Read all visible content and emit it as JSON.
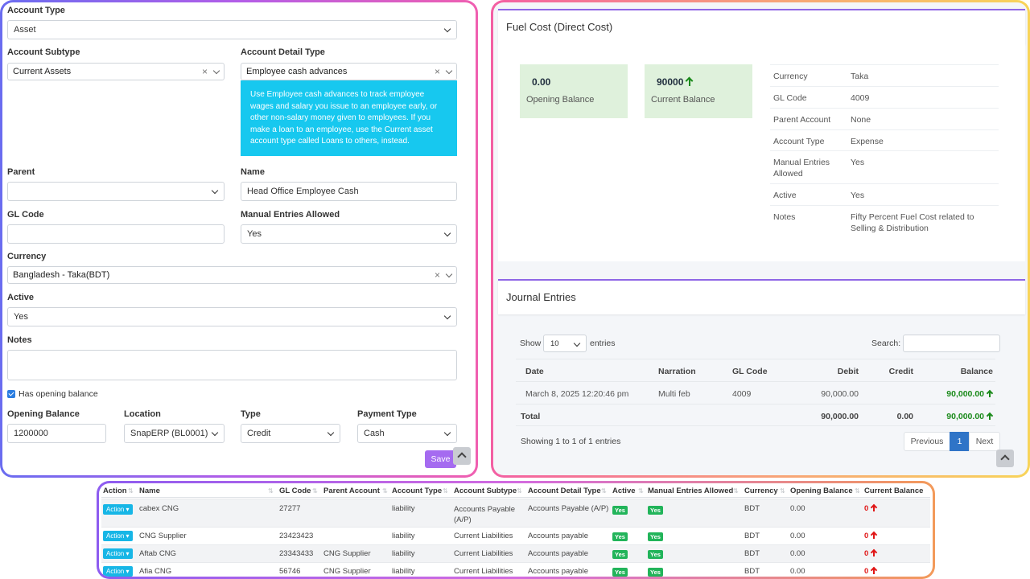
{
  "form": {
    "account_type": {
      "label": "Account Type",
      "value": "Asset"
    },
    "account_subtype": {
      "label": "Account Subtype",
      "value": "Current Assets"
    },
    "account_detail_type": {
      "label": "Account Detail Type",
      "value": "Employee cash advances"
    },
    "detail_hint": "Use Employee cash advances to track employee wages and salary you issue to an employee early, or other non-salary money given to employees. If you make a loan to an employee, use the Current asset account type called Loans to others, instead.",
    "parent": {
      "label": "Parent",
      "value": ""
    },
    "name": {
      "label": "Name",
      "value": "Head Office Employee Cash"
    },
    "gl_code": {
      "label": "GL Code",
      "value": ""
    },
    "manual_entries": {
      "label": "Manual Entries Allowed",
      "value": "Yes"
    },
    "currency": {
      "label": "Currency",
      "value": "Bangladesh - Taka(BDT)"
    },
    "active": {
      "label": "Active",
      "value": "Yes"
    },
    "notes": {
      "label": "Notes",
      "value": ""
    },
    "has_opening_balance": "Has opening balance",
    "opening_balance": {
      "label": "Opening Balance",
      "value": "1200000"
    },
    "location": {
      "label": "Location",
      "value": "SnapERP (BL0001)"
    },
    "type": {
      "label": "Type",
      "value": "Credit"
    },
    "payment_type": {
      "label": "Payment Type",
      "value": "Cash"
    },
    "save_label": "Save"
  },
  "account": {
    "title": "Fuel Cost (Direct Cost)",
    "opening_balance_value": "0.00",
    "opening_balance_caption": "Opening Balance",
    "current_balance_value": "90000",
    "current_balance_caption": "Current Balance",
    "details": [
      {
        "k": "Currency",
        "v": "Taka"
      },
      {
        "k": "GL Code",
        "v": "4009"
      },
      {
        "k": "Parent Account",
        "v": "None"
      },
      {
        "k": "Account Type",
        "v": "Expense"
      },
      {
        "k": "Manual Entries Allowed",
        "v": "Yes"
      },
      {
        "k": "Active",
        "v": "Yes"
      },
      {
        "k": "Notes",
        "v": "Fifty Percent Fuel Cost related to Selling & Distribution"
      }
    ]
  },
  "journal": {
    "title": "Journal Entries",
    "show_label": "Show",
    "entries_label": "entries",
    "page_size": "10",
    "search_label": "Search:",
    "columns": [
      "Date",
      "Narration",
      "GL Code",
      "Debit",
      "Credit",
      "Balance"
    ],
    "rows": [
      {
        "date": "March 8, 2025 12:20:46 pm",
        "narration": "Multi feb",
        "gl": "4009",
        "debit": "90,000.00",
        "credit": "",
        "balance": "90,000.00"
      }
    ],
    "total": {
      "label": "Total",
      "debit": "90,000.00",
      "credit": "0.00",
      "balance": "90,000.00"
    },
    "info": "Showing 1 to 1 of 1 entries",
    "prev": "Previous",
    "page": "1",
    "next": "Next"
  },
  "accounts_table": {
    "columns": [
      "Action",
      "Name",
      "GL Code",
      "Parent Account",
      "Account Type",
      "Account Subtype",
      "Account Detail Type",
      "Active",
      "Manual Entries Allowed",
      "Currency",
      "Opening Balance",
      "Current Balance"
    ],
    "action_label": "Action",
    "yes_label": "Yes",
    "rows": [
      {
        "name": "cabex CNG",
        "gl": "27277",
        "parent": "",
        "type": "liability",
        "subtype": "Accounts Payable (A/P)",
        "detail": "Accounts Payable (A/P)",
        "currency": "BDT",
        "opening": "0.00",
        "current": "0"
      },
      {
        "name": "CNG Supplier",
        "gl": "23423423",
        "parent": "",
        "type": "liability",
        "subtype": "Current Liabilities",
        "detail": "Accounts payable",
        "currency": "BDT",
        "opening": "0.00",
        "current": "0"
      },
      {
        "name": "Aftab CNG",
        "gl": "23343433",
        "parent": "CNG Supplier",
        "type": "liability",
        "subtype": "Current Liabilities",
        "detail": "Accounts payable",
        "currency": "BDT",
        "opening": "0.00",
        "current": "0"
      },
      {
        "name": "Afia CNG",
        "gl": "56746",
        "parent": "CNG Supplier",
        "type": "liability",
        "subtype": "Current Liabilities",
        "detail": "Accounts payable",
        "currency": "BDT",
        "opening": "0.00",
        "current": "0"
      }
    ]
  }
}
